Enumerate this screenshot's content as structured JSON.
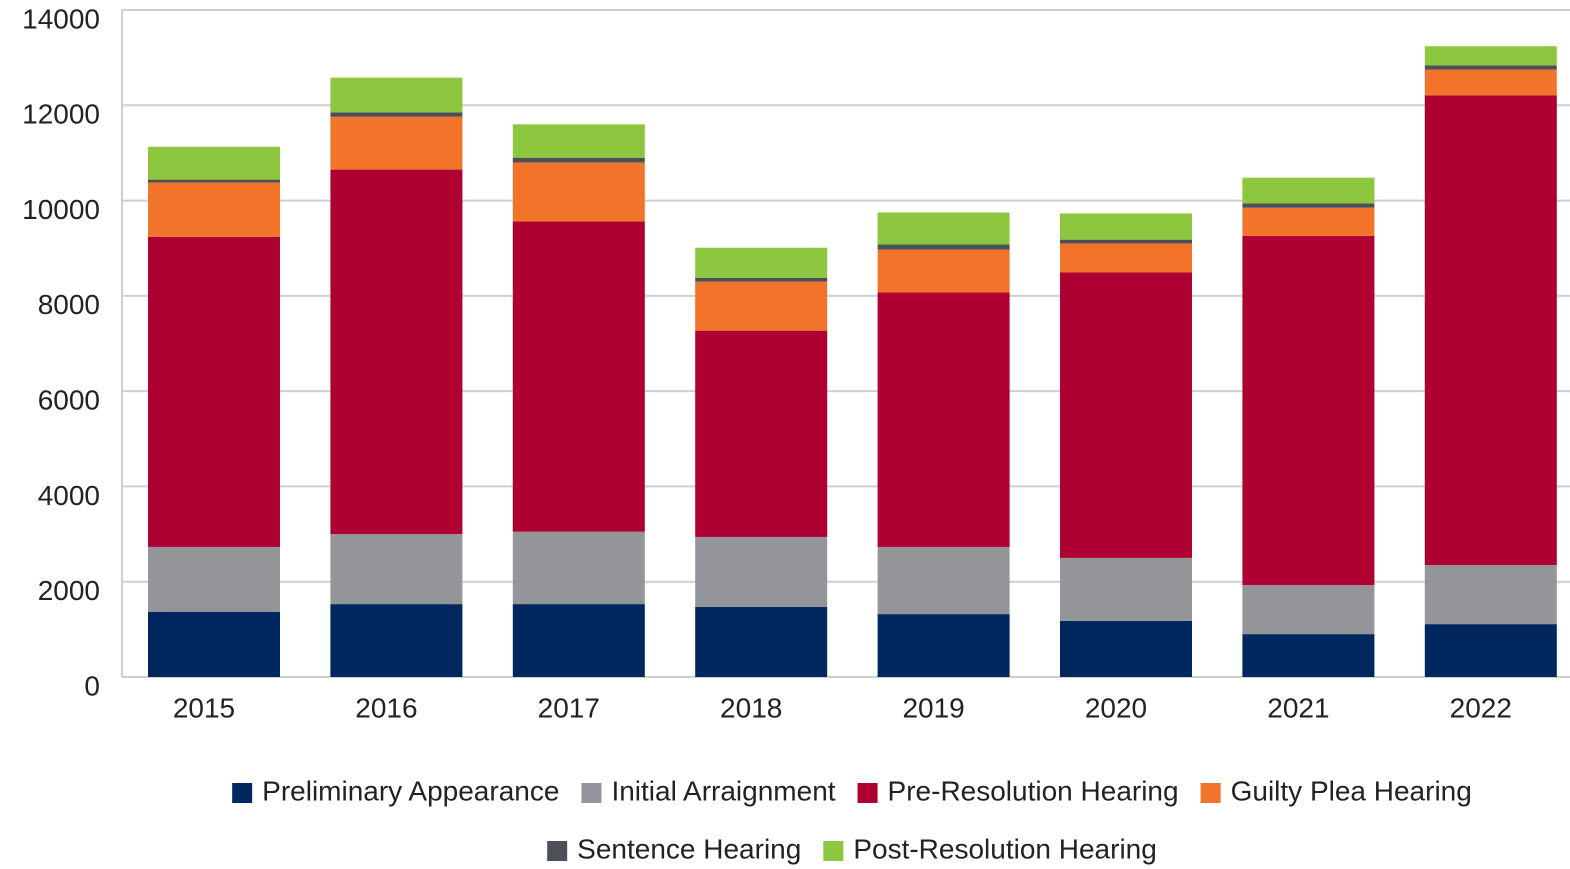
{
  "chart_data": {
    "type": "stacked_bar",
    "categories": [
      "2015",
      "2016",
      "2017",
      "2018",
      "2019",
      "2020",
      "2021",
      "2022"
    ],
    "series": [
      {
        "name": "Preliminary Appearance",
        "color": "#00285e",
        "values": [
          1370,
          1530,
          1530,
          1470,
          1320,
          1180,
          900,
          1110
        ]
      },
      {
        "name": "Initial Arraignment",
        "color": "#939598",
        "values": [
          1360,
          1470,
          1520,
          1470,
          1410,
          1320,
          1030,
          1240
        ]
      },
      {
        "name": "Pre-Resolution Hearing",
        "color": "#ae0032",
        "values": [
          6510,
          7650,
          6510,
          4330,
          5340,
          5990,
          7330,
          9860
        ]
      },
      {
        "name": "Guilty Plea Hearing",
        "color": "#f1742a",
        "values": [
          1140,
          1110,
          1240,
          1030,
          900,
          610,
          590,
          540
        ]
      },
      {
        "name": "Sentence Hearing",
        "color": "#4d5157",
        "values": [
          60,
          90,
          100,
          80,
          110,
          80,
          90,
          90
        ]
      },
      {
        "name": "Post-Resolution Hearing",
        "color": "#8dc63f",
        "values": [
          690,
          730,
          700,
          630,
          670,
          550,
          540,
          400
        ]
      }
    ],
    "ylim": [
      0,
      14000
    ],
    "yticks": [
      0,
      2000,
      4000,
      6000,
      8000,
      10000,
      12000,
      14000
    ],
    "grid": true
  }
}
